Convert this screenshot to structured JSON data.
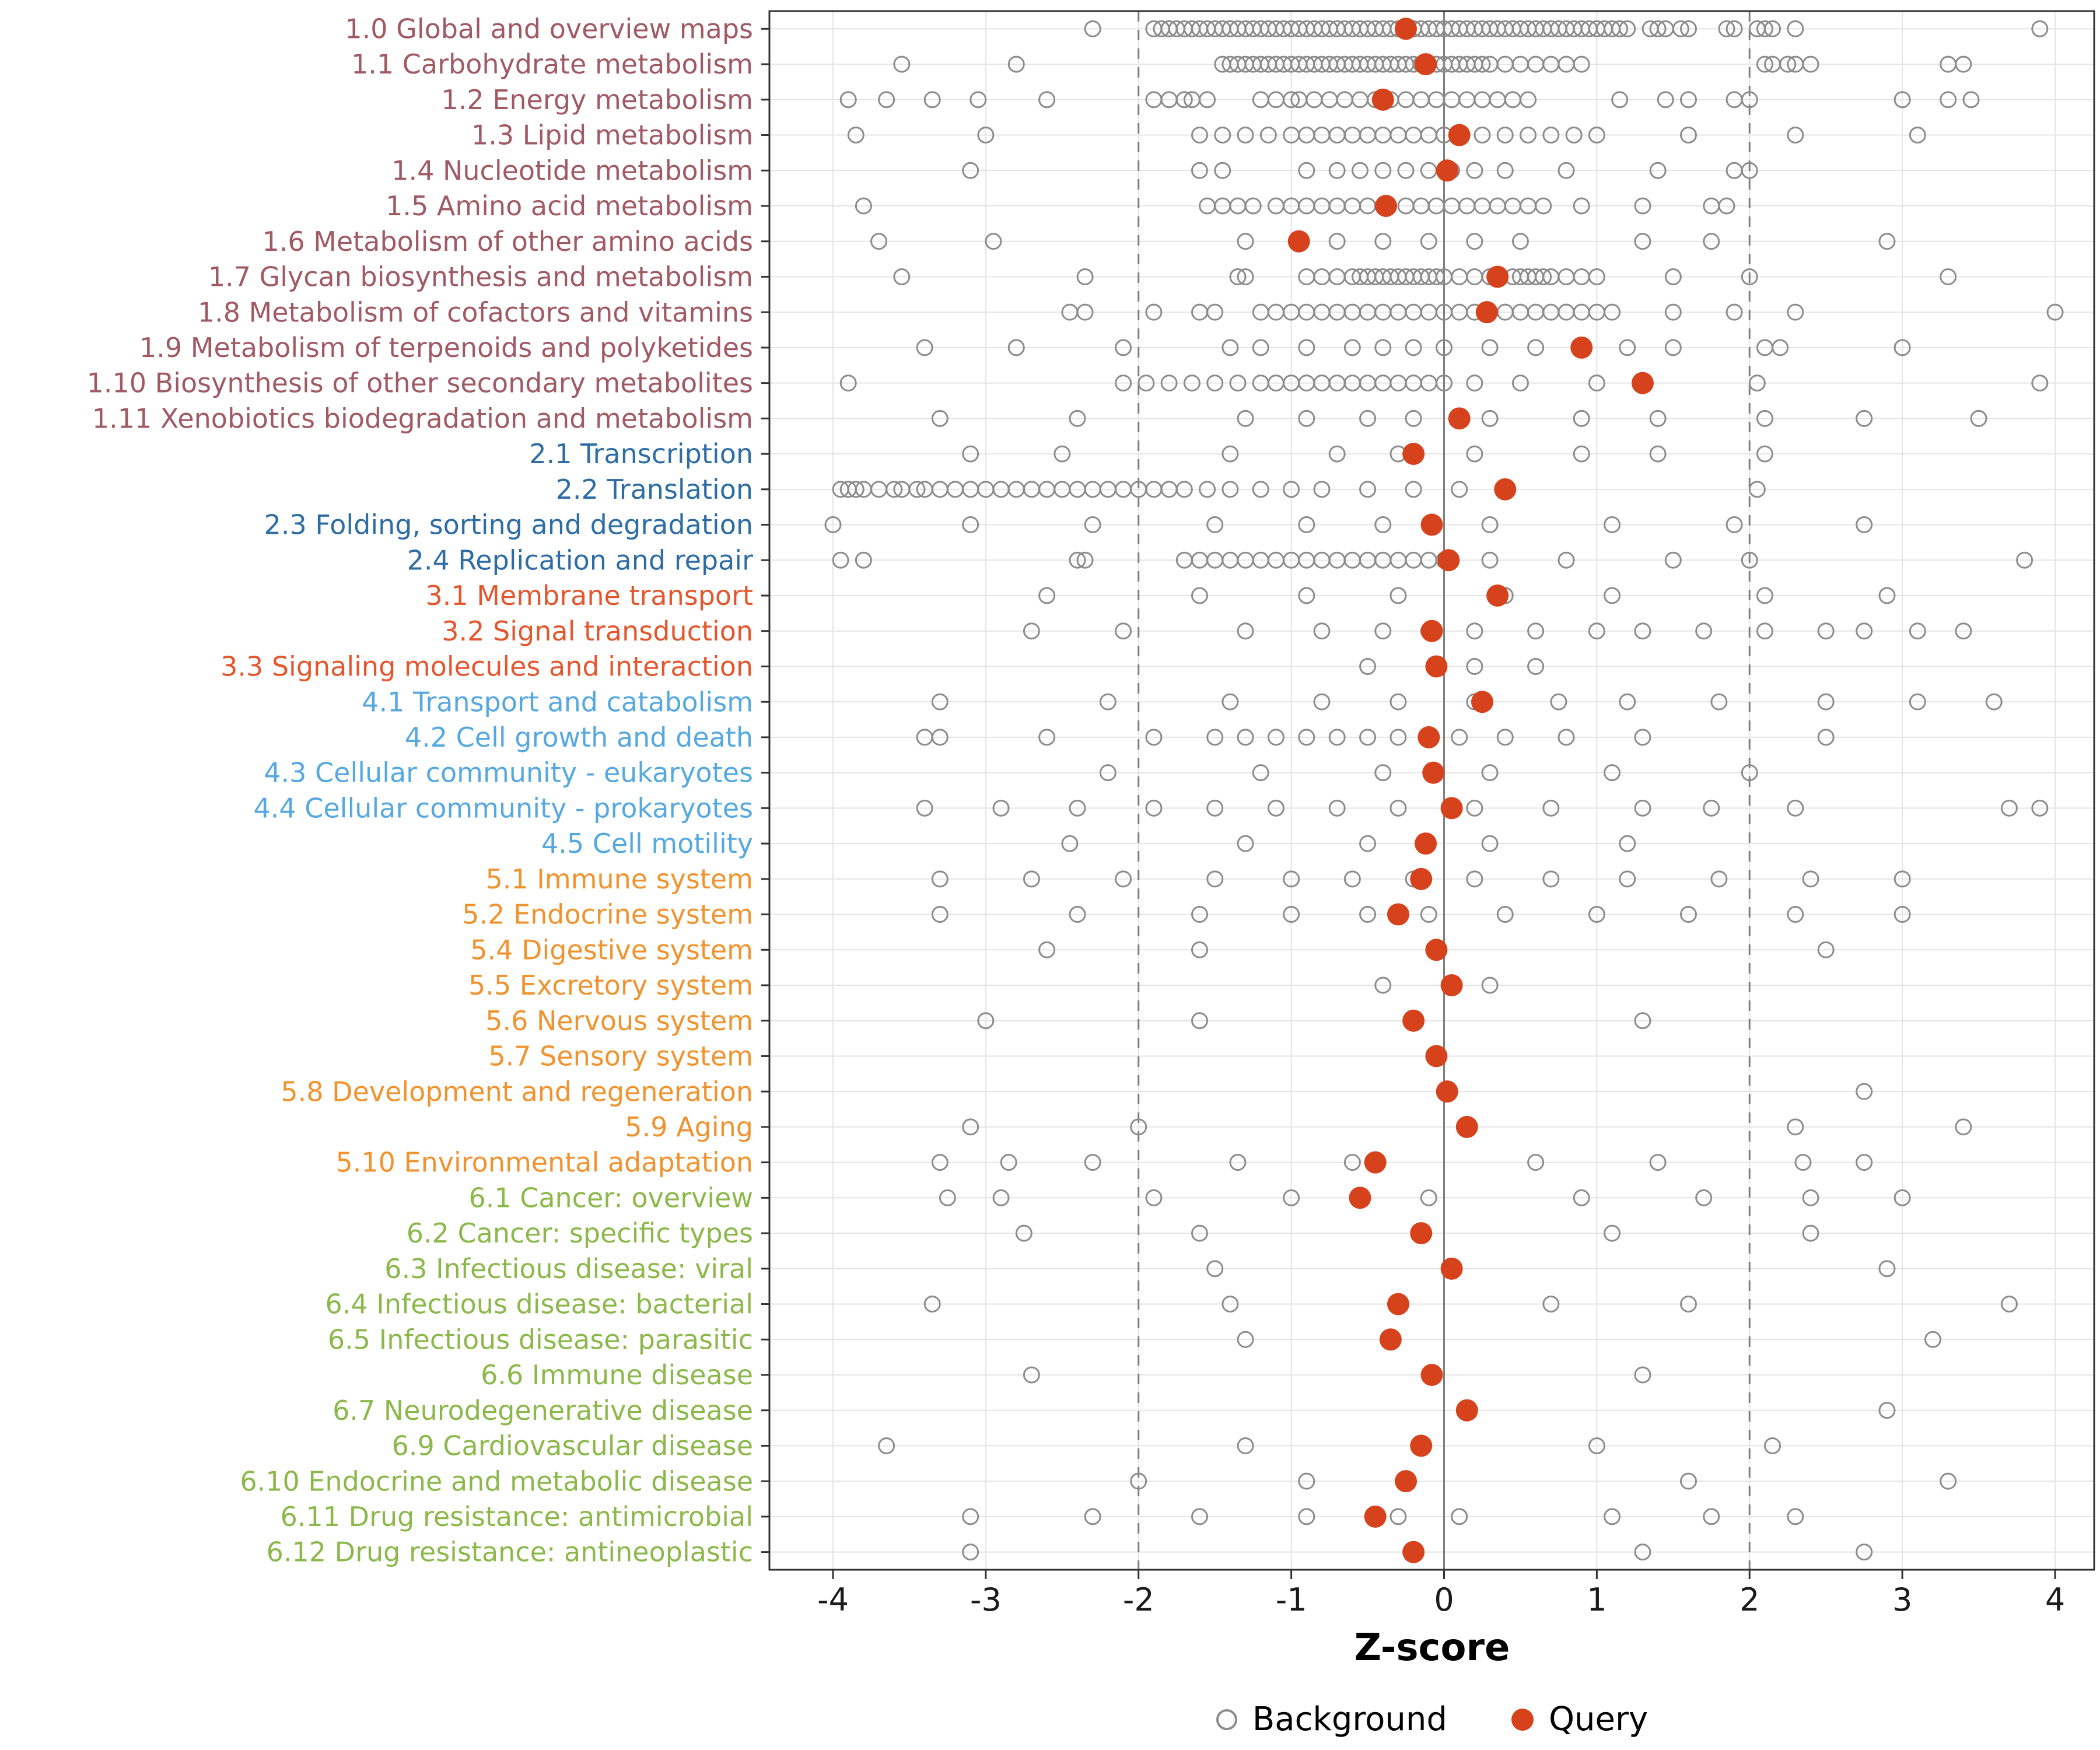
{
  "chart_data": {
    "type": "scatter",
    "orientation": "horizontal-dot-plot",
    "xlabel": "Z-score",
    "xlim": [
      -4.4,
      4.3
    ],
    "x_ticks": [
      -4,
      -3,
      -2,
      -1,
      0,
      1,
      2,
      3,
      4
    ],
    "x_tick_labels": [
      "-4",
      "-3",
      "-2",
      "-1",
      "0",
      "1",
      "2",
      "3",
      "4"
    ],
    "reference_lines": {
      "solid": [
        0
      ],
      "dashed": [
        -2,
        2
      ]
    },
    "legend": [
      {
        "label": "Background",
        "style": "open-gray-circle"
      },
      {
        "label": "Query",
        "style": "filled-red-circle"
      }
    ],
    "colors": {
      "background": "#8c8c8c",
      "query": "#d6421c",
      "gridline": "#e4e4e4",
      "reference_line": "#7f7f7f",
      "panel_border": "#333333",
      "axis_text": "#1a1a1a",
      "group_label": {
        "1": "#a05a64",
        "2": "#2e6da4",
        "3": "#e4572e",
        "4": "#56a8e0",
        "5": "#f0932e",
        "6": "#8cb84b"
      }
    },
    "rows": [
      {
        "label": "1.0 Global and overview maps",
        "group": "1",
        "query": -0.25,
        "background": [
          -2.3,
          -1.9,
          -1.85,
          -1.8,
          -1.75,
          -1.7,
          -1.65,
          -1.6,
          -1.55,
          -1.5,
          -1.45,
          -1.4,
          -1.35,
          -1.3,
          -1.25,
          -1.2,
          -1.15,
          -1.1,
          -1.05,
          -1.0,
          -0.95,
          -0.9,
          -0.85,
          -0.8,
          -0.75,
          -0.7,
          -0.65,
          -0.6,
          -0.55,
          -0.5,
          -0.45,
          -0.4,
          -0.35,
          -0.3,
          -0.2,
          -0.15,
          -0.1,
          -0.05,
          0,
          0.05,
          0.1,
          0.15,
          0.2,
          0.25,
          0.3,
          0.35,
          0.4,
          0.45,
          0.5,
          0.55,
          0.6,
          0.65,
          0.7,
          0.75,
          0.8,
          0.85,
          0.9,
          0.95,
          1.0,
          1.05,
          1.1,
          1.15,
          1.2,
          1.35,
          1.4,
          1.45,
          1.55,
          1.6,
          1.85,
          1.9,
          2.05,
          2.1,
          2.15,
          2.3,
          3.9
        ]
      },
      {
        "label": "1.1 Carbohydrate metabolism",
        "group": "1",
        "query": -0.12,
        "background": [
          -3.55,
          -2.8,
          -1.45,
          -1.4,
          -1.35,
          -1.3,
          -1.25,
          -1.2,
          -1.15,
          -1.1,
          -1.05,
          -1.0,
          -0.95,
          -0.9,
          -0.85,
          -0.8,
          -0.75,
          -0.7,
          -0.65,
          -0.6,
          -0.55,
          -0.5,
          -0.45,
          -0.4,
          -0.35,
          -0.3,
          -0.25,
          -0.2,
          -0.15,
          -0.1,
          -0.05,
          0,
          0.05,
          0.1,
          0.15,
          0.2,
          0.25,
          0.3,
          0.4,
          0.5,
          0.6,
          0.7,
          0.8,
          0.9,
          2.1,
          2.15,
          2.25,
          2.3,
          2.4,
          3.3,
          3.4
        ]
      },
      {
        "label": "1.2 Energy metabolism",
        "group": "1",
        "query": -0.4,
        "background": [
          -3.9,
          -3.65,
          -3.35,
          -3.05,
          -2.6,
          -1.9,
          -1.8,
          -1.7,
          -1.65,
          -1.55,
          -1.2,
          -1.1,
          -1.0,
          -0.95,
          -0.85,
          -0.75,
          -0.65,
          -0.55,
          -0.45,
          -0.35,
          -0.25,
          -0.15,
          -0.05,
          0.05,
          0.15,
          0.25,
          0.35,
          0.45,
          0.55,
          1.15,
          1.45,
          1.6,
          1.9,
          2.0,
          3.0,
          3.3,
          3.45
        ]
      },
      {
        "label": "1.3 Lipid metabolism",
        "group": "1",
        "query": 0.1,
        "background": [
          -3.85,
          -3.0,
          -1.6,
          -1.45,
          -1.3,
          -1.15,
          -1.0,
          -0.9,
          -0.8,
          -0.7,
          -0.6,
          -0.5,
          -0.4,
          -0.3,
          -0.2,
          -0.1,
          0,
          0.1,
          0.25,
          0.4,
          0.55,
          0.7,
          0.85,
          1.0,
          1.6,
          2.3,
          3.1
        ]
      },
      {
        "label": "1.4 Nucleotide metabolism",
        "group": "1",
        "query": 0.02,
        "background": [
          -3.1,
          -1.6,
          -1.45,
          -0.9,
          -0.7,
          -0.55,
          -0.4,
          -0.25,
          -0.1,
          0.05,
          0.2,
          0.4,
          0.8,
          1.4,
          1.9,
          2.0
        ]
      },
      {
        "label": "1.5 Amino acid metabolism",
        "group": "1",
        "query": -0.38,
        "background": [
          -3.8,
          -1.55,
          -1.45,
          -1.35,
          -1.25,
          -1.1,
          -1.0,
          -0.9,
          -0.8,
          -0.7,
          -0.6,
          -0.5,
          -0.4,
          -0.25,
          -0.15,
          -0.05,
          0.05,
          0.15,
          0.25,
          0.35,
          0.45,
          0.55,
          0.65,
          0.9,
          1.3,
          1.75,
          1.85
        ]
      },
      {
        "label": "1.6 Metabolism of other amino acids",
        "group": "1",
        "query": -0.95,
        "background": [
          -3.7,
          -2.95,
          -1.3,
          -0.7,
          -0.4,
          -0.1,
          0.2,
          0.5,
          1.3,
          1.75,
          2.9
        ]
      },
      {
        "label": "1.7 Glycan biosynthesis and metabolism",
        "group": "1",
        "query": 0.35,
        "background": [
          -3.55,
          -2.35,
          -1.35,
          -1.3,
          -0.9,
          -0.8,
          -0.7,
          -0.6,
          -0.55,
          -0.5,
          -0.45,
          -0.4,
          -0.35,
          -0.3,
          -0.25,
          -0.2,
          -0.15,
          -0.1,
          -0.05,
          0,
          0.1,
          0.2,
          0.3,
          0.45,
          0.5,
          0.55,
          0.6,
          0.65,
          0.7,
          0.8,
          0.9,
          1.0,
          1.5,
          2.0,
          3.3
        ]
      },
      {
        "label": "1.8 Metabolism of cofactors and vitamins",
        "group": "1",
        "query": 0.28,
        "background": [
          -2.45,
          -2.35,
          -1.9,
          -1.6,
          -1.5,
          -1.2,
          -1.1,
          -1.0,
          -0.9,
          -0.8,
          -0.7,
          -0.6,
          -0.5,
          -0.4,
          -0.3,
          -0.2,
          -0.1,
          0,
          0.1,
          0.2,
          0.4,
          0.5,
          0.6,
          0.7,
          0.8,
          0.9,
          1.0,
          1.1,
          1.5,
          1.9,
          2.3,
          4.0
        ]
      },
      {
        "label": "1.9 Metabolism of terpenoids and polyketides",
        "group": "1",
        "query": 0.9,
        "background": [
          -3.4,
          -2.8,
          -2.1,
          -1.4,
          -1.2,
          -0.9,
          -0.6,
          -0.4,
          -0.2,
          0,
          0.3,
          0.6,
          1.2,
          1.5,
          2.1,
          2.2,
          3.0
        ]
      },
      {
        "label": "1.10 Biosynthesis of other secondary metabolites",
        "group": "1",
        "query": 1.3,
        "background": [
          -3.9,
          -2.1,
          -1.95,
          -1.8,
          -1.65,
          -1.5,
          -1.35,
          -1.2,
          -1.1,
          -1.0,
          -0.9,
          -0.8,
          -0.7,
          -0.6,
          -0.5,
          -0.4,
          -0.3,
          -0.2,
          -0.1,
          0,
          0.2,
          0.5,
          1.0,
          2.05,
          3.9
        ]
      },
      {
        "label": "1.11 Xenobiotics biodegradation and metabolism",
        "group": "1",
        "query": 0.1,
        "background": [
          -3.3,
          -2.4,
          -1.3,
          -0.9,
          -0.5,
          -0.2,
          0.3,
          0.9,
          1.4,
          2.1,
          2.75,
          3.5
        ]
      },
      {
        "label": "2.1 Transcription",
        "group": "2",
        "query": -0.2,
        "background": [
          -3.1,
          -2.5,
          -1.4,
          -0.7,
          -0.3,
          0.2,
          0.9,
          1.4,
          2.1
        ]
      },
      {
        "label": "2.2 Translation",
        "group": "2",
        "query": 0.4,
        "background": [
          -3.95,
          -3.9,
          -3.85,
          -3.8,
          -3.7,
          -3.6,
          -3.55,
          -3.45,
          -3.4,
          -3.3,
          -3.2,
          -3.1,
          -3.0,
          -2.9,
          -2.8,
          -2.7,
          -2.6,
          -2.5,
          -2.4,
          -2.3,
          -2.2,
          -2.1,
          -2.0,
          -1.9,
          -1.8,
          -1.7,
          -1.55,
          -1.4,
          -1.2,
          -1.0,
          -0.8,
          -0.5,
          -0.2,
          0.1,
          2.05
        ]
      },
      {
        "label": "2.3 Folding, sorting and degradation",
        "group": "2",
        "query": -0.08,
        "background": [
          -4.0,
          -3.1,
          -2.3,
          -1.5,
          -0.9,
          -0.4,
          0.3,
          1.1,
          1.9,
          2.75
        ]
      },
      {
        "label": "2.4 Replication and repair",
        "group": "2",
        "query": 0.03,
        "background": [
          -3.95,
          -3.8,
          -2.4,
          -2.35,
          -1.7,
          -1.6,
          -1.5,
          -1.4,
          -1.3,
          -1.2,
          -1.1,
          -1.0,
          -0.9,
          -0.8,
          -0.7,
          -0.6,
          -0.5,
          -0.4,
          -0.3,
          -0.2,
          -0.1,
          0,
          0.3,
          0.8,
          1.5,
          2.0,
          3.8
        ]
      },
      {
        "label": "3.1 Membrane transport",
        "group": "3",
        "query": 0.35,
        "background": [
          -2.6,
          -1.6,
          -0.9,
          -0.3,
          0.4,
          1.1,
          2.1,
          2.9
        ]
      },
      {
        "label": "3.2 Signal transduction",
        "group": "3",
        "query": -0.08,
        "background": [
          -2.7,
          -2.1,
          -1.3,
          -0.8,
          -0.4,
          -0.1,
          0.2,
          0.6,
          1.0,
          1.3,
          1.7,
          2.1,
          2.5,
          2.75,
          3.1,
          3.4
        ]
      },
      {
        "label": "3.3 Signaling molecules and interaction",
        "group": "3",
        "query": -0.05,
        "background": [
          -0.5,
          0.2,
          0.6
        ]
      },
      {
        "label": "4.1 Transport and catabolism",
        "group": "4",
        "query": 0.25,
        "background": [
          -3.3,
          -2.2,
          -1.4,
          -0.8,
          -0.3,
          0.2,
          0.75,
          1.2,
          1.8,
          2.5,
          3.1,
          3.6
        ]
      },
      {
        "label": "4.2 Cell growth and death",
        "group": "4",
        "query": -0.1,
        "background": [
          -3.4,
          -3.3,
          -2.6,
          -1.9,
          -1.5,
          -1.3,
          -1.1,
          -0.9,
          -0.7,
          -0.5,
          -0.3,
          -0.1,
          0.1,
          0.4,
          0.8,
          1.3,
          2.5
        ]
      },
      {
        "label": "4.3 Cellular community - eukaryotes",
        "group": "4",
        "query": -0.07,
        "background": [
          -2.2,
          -1.2,
          -0.4,
          0.3,
          1.1,
          2.0
        ]
      },
      {
        "label": "4.4 Cellular community - prokaryotes",
        "group": "4",
        "query": 0.05,
        "background": [
          -3.4,
          -2.9,
          -2.4,
          -1.9,
          -1.5,
          -1.1,
          -0.7,
          -0.3,
          0.2,
          0.7,
          1.3,
          1.75,
          2.3,
          3.7,
          3.9
        ]
      },
      {
        "label": "4.5 Cell motility",
        "group": "4",
        "query": -0.12,
        "background": [
          -2.45,
          -1.3,
          -0.5,
          0.3,
          1.2
        ]
      },
      {
        "label": "5.1 Immune system",
        "group": "5",
        "query": -0.15,
        "background": [
          -3.3,
          -2.7,
          -2.1,
          -1.5,
          -1.0,
          -0.6,
          -0.2,
          0.2,
          0.7,
          1.2,
          1.8,
          2.4,
          3.0
        ]
      },
      {
        "label": "5.2 Endocrine system",
        "group": "5",
        "query": -0.3,
        "background": [
          -3.3,
          -2.4,
          -1.6,
          -1.0,
          -0.5,
          -0.1,
          0.4,
          1.0,
          1.6,
          2.3,
          3.0
        ]
      },
      {
        "label": "5.4 Digestive system",
        "group": "5",
        "query": -0.05,
        "background": [
          -2.6,
          -1.6,
          2.5
        ]
      },
      {
        "label": "5.5 Excretory system",
        "group": "5",
        "query": 0.05,
        "background": [
          -0.4,
          0.3
        ]
      },
      {
        "label": "5.6 Nervous system",
        "group": "5",
        "query": -0.2,
        "background": [
          -3.0,
          -1.6,
          1.3
        ]
      },
      {
        "label": "5.7 Sensory system",
        "group": "5",
        "query": -0.05,
        "background": []
      },
      {
        "label": "5.8 Development and regeneration",
        "group": "5",
        "query": 0.02,
        "background": [
          2.75
        ]
      },
      {
        "label": "5.9 Aging",
        "group": "5",
        "query": 0.15,
        "background": [
          -3.1,
          -2.0,
          2.3,
          3.4
        ]
      },
      {
        "label": "5.10 Environmental adaptation",
        "group": "5",
        "query": -0.45,
        "background": [
          -3.3,
          -2.85,
          -2.3,
          -1.35,
          -0.6,
          0.6,
          1.4,
          2.35,
          2.75
        ]
      },
      {
        "label": "6.1 Cancer: overview",
        "group": "6",
        "query": -0.55,
        "background": [
          -3.25,
          -2.9,
          -1.9,
          -1.0,
          -0.1,
          0.9,
          1.7,
          2.4,
          3.0
        ]
      },
      {
        "label": "6.2 Cancer: specific types",
        "group": "6",
        "query": -0.15,
        "background": [
          -2.75,
          -1.6,
          1.1,
          2.4
        ]
      },
      {
        "label": "6.3 Infectious disease: viral",
        "group": "6",
        "query": 0.05,
        "background": [
          -1.5,
          2.9
        ]
      },
      {
        "label": "6.4 Infectious disease: bacterial",
        "group": "6",
        "query": -0.3,
        "background": [
          -3.35,
          -1.4,
          0.7,
          1.6,
          3.7
        ]
      },
      {
        "label": "6.5 Infectious disease: parasitic",
        "group": "6",
        "query": -0.35,
        "background": [
          -1.3,
          3.2
        ]
      },
      {
        "label": "6.6 Immune disease",
        "group": "6",
        "query": -0.08,
        "background": [
          -2.7,
          1.3
        ]
      },
      {
        "label": "6.7 Neurodegenerative disease",
        "group": "6",
        "query": 0.15,
        "background": [
          2.9
        ]
      },
      {
        "label": "6.9 Cardiovascular disease",
        "group": "6",
        "query": -0.15,
        "background": [
          -3.65,
          -1.3,
          1.0,
          2.15
        ]
      },
      {
        "label": "6.10 Endocrine and metabolic disease",
        "group": "6",
        "query": -0.25,
        "background": [
          -2.0,
          -0.9,
          1.6,
          3.3
        ]
      },
      {
        "label": "6.11 Drug resistance: antimicrobial",
        "group": "6",
        "query": -0.45,
        "background": [
          -3.1,
          -2.3,
          -1.6,
          -0.9,
          -0.3,
          0.1,
          1.1,
          1.75,
          2.3
        ]
      },
      {
        "label": "6.12 Drug resistance: antineoplastic",
        "group": "6",
        "query": -0.2,
        "background": [
          -3.1,
          1.3,
          2.75
        ]
      }
    ]
  }
}
